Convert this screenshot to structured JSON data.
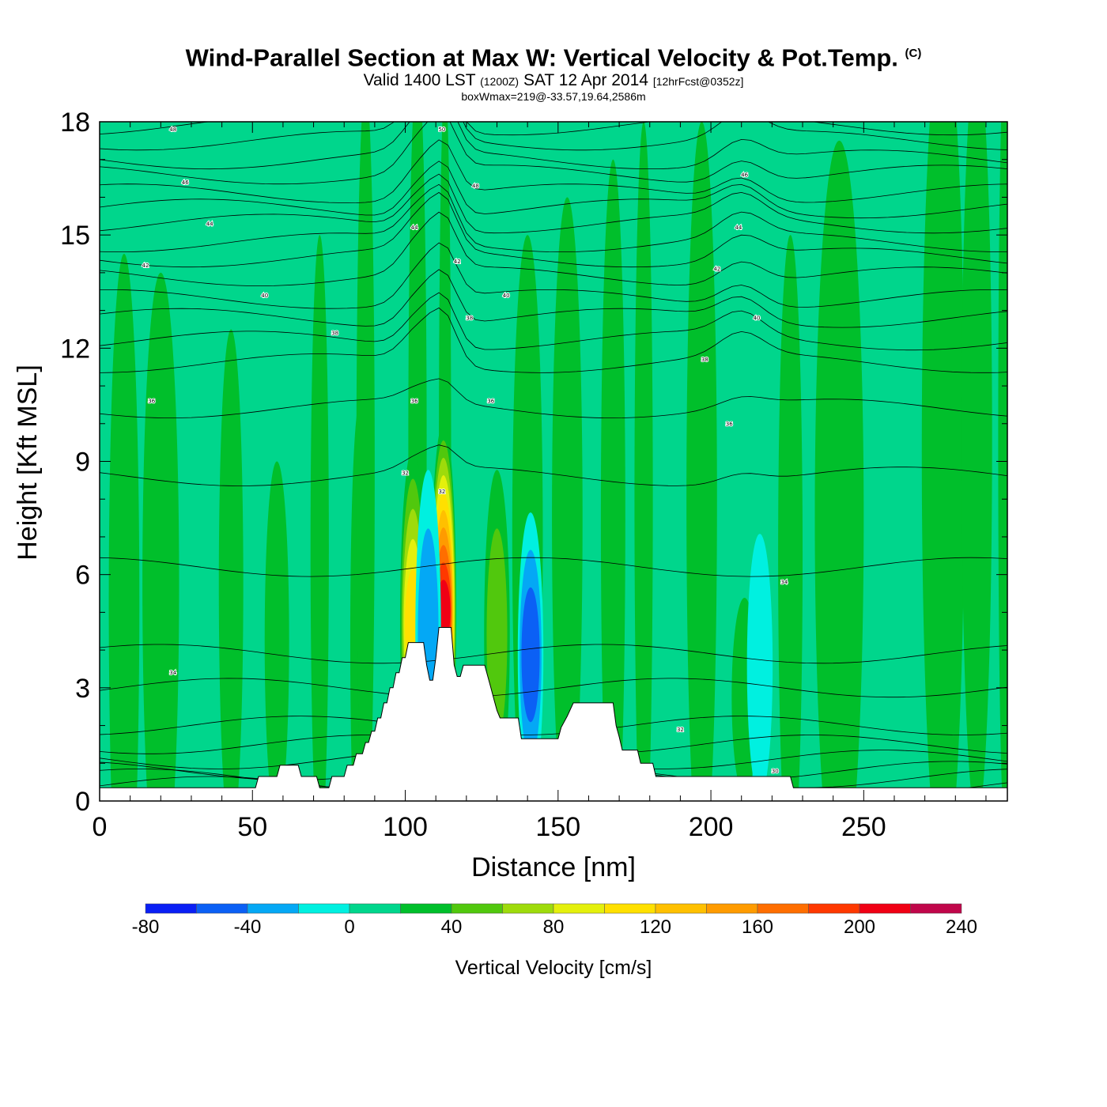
{
  "header": {
    "title": "Wind-Parallel Section at Max W: Vertical Velocity & Pot.Temp.",
    "copyright": "(C)",
    "valid_prefix": "Valid 1400 LST",
    "valid_utc": "(1200Z)",
    "valid_date": "SAT 12 Apr 2014",
    "forecast": "[12hrFcst@0352z]",
    "box_wmax": "boxWmax=219@-33.57,19.64,2586m"
  },
  "chart_data": {
    "type": "heatmap",
    "xlabel": "Distance [nm]",
    "ylabel": "Height [Kft MSL]",
    "xlim": [
      0,
      297
    ],
    "ylim": [
      0,
      18
    ],
    "x_ticks": [
      0,
      50,
      100,
      150,
      200,
      250
    ],
    "y_ticks": [
      0,
      3,
      6,
      9,
      12,
      15,
      18
    ],
    "colorbar": {
      "title": "Vertical Velocity [cm/s]",
      "levels": [
        -80,
        -60,
        -40,
        -20,
        0,
        20,
        40,
        60,
        80,
        100,
        120,
        140,
        160,
        180,
        200,
        220,
        240
      ],
      "tick_labels": [
        -80,
        -40,
        0,
        40,
        80,
        120,
        160,
        200,
        240
      ],
      "colors": [
        "#0a1ff5",
        "#0b60f5",
        "#04a8f5",
        "#00f0e0",
        "#00d68c",
        "#00bf2b",
        "#51c80d",
        "#9edb0b",
        "#e4f00c",
        "#ffe000",
        "#ffc000",
        "#ff9b00",
        "#ff6e00",
        "#ff3800",
        "#f00014",
        "#c0064a"
      ]
    },
    "background_value": 10,
    "updraft_cores": [
      {
        "x": 102.5,
        "height": 8.0,
        "peak": 125
      },
      {
        "x": 112.5,
        "height": 8.6,
        "peak": 219
      },
      {
        "x": 130,
        "height": 7.5,
        "peak": 60
      },
      {
        "x": 211,
        "height": 4.5,
        "peak": 45
      }
    ],
    "downdraft_cores": [
      {
        "x": 107.5,
        "height": 7.5,
        "peak": -35
      },
      {
        "x": 141,
        "height": 6.5,
        "peak": -55
      },
      {
        "x": 216,
        "height": 6.0,
        "peak": -25
      }
    ],
    "terrain": [
      [
        0,
        0.35
      ],
      [
        51,
        0.35
      ],
      [
        52,
        0.65
      ],
      [
        58,
        0.65
      ],
      [
        59,
        0.95
      ],
      [
        65,
        0.95
      ],
      [
        66,
        0.65
      ],
      [
        71,
        0.65
      ],
      [
        72,
        0.35
      ],
      [
        75,
        0.35
      ],
      [
        76,
        0.65
      ],
      [
        80,
        0.65
      ],
      [
        81,
        0.95
      ],
      [
        83,
        0.95
      ],
      [
        84,
        1.25
      ],
      [
        86,
        1.25
      ],
      [
        87,
        1.55
      ],
      [
        88,
        1.55
      ],
      [
        89,
        1.85
      ],
      [
        90,
        1.85
      ],
      [
        91,
        2.2
      ],
      [
        92,
        2.2
      ],
      [
        93,
        2.6
      ],
      [
        94,
        2.6
      ],
      [
        95,
        3.0
      ],
      [
        96,
        3.0
      ],
      [
        97,
        3.4
      ],
      [
        98,
        3.4
      ],
      [
        99,
        3.8
      ],
      [
        100,
        3.8
      ],
      [
        101,
        4.2
      ],
      [
        106,
        4.2
      ],
      [
        107,
        3.6
      ],
      [
        108,
        3.2
      ],
      [
        109,
        3.2
      ],
      [
        110,
        3.8
      ],
      [
        111,
        4.6
      ],
      [
        115,
        4.6
      ],
      [
        116,
        3.6
      ],
      [
        117,
        3.3
      ],
      [
        118,
        3.3
      ],
      [
        119,
        3.6
      ],
      [
        126,
        3.6
      ],
      [
        127,
        3.3
      ],
      [
        128,
        3.0
      ],
      [
        129,
        2.7
      ],
      [
        130,
        2.4
      ],
      [
        131,
        2.2
      ],
      [
        137,
        2.2
      ],
      [
        138,
        1.65
      ],
      [
        150,
        1.65
      ],
      [
        151,
        1.95
      ],
      [
        153,
        2.25
      ],
      [
        155,
        2.6
      ],
      [
        168,
        2.6
      ],
      [
        169,
        2.0
      ],
      [
        170,
        1.7
      ],
      [
        171,
        1.35
      ],
      [
        176,
        1.35
      ],
      [
        177,
        1.0
      ],
      [
        181,
        1.0
      ],
      [
        182,
        0.65
      ],
      [
        226,
        0.65
      ],
      [
        227,
        0.35
      ],
      [
        297,
        0.35
      ]
    ],
    "isentrope_labels": [
      {
        "text": "48",
        "x": 24,
        "y": 17.8
      },
      {
        "text": "46",
        "x": 28,
        "y": 16.4
      },
      {
        "text": "44",
        "x": 36,
        "y": 15.3
      },
      {
        "text": "42",
        "x": 15,
        "y": 14.2
      },
      {
        "text": "40",
        "x": 54,
        "y": 13.4
      },
      {
        "text": "38",
        "x": 77,
        "y": 12.4
      },
      {
        "text": "36",
        "x": 17,
        "y": 10.6
      },
      {
        "text": "34",
        "x": 24,
        "y": 3.4
      },
      {
        "text": "50",
        "x": 112,
        "y": 17.8
      },
      {
        "text": "48",
        "x": 123,
        "y": 16.3
      },
      {
        "text": "44",
        "x": 103,
        "y": 15.2
      },
      {
        "text": "42",
        "x": 117,
        "y": 14.3
      },
      {
        "text": "40",
        "x": 133,
        "y": 13.4
      },
      {
        "text": "38",
        "x": 121,
        "y": 12.8
      },
      {
        "text": "36",
        "x": 103,
        "y": 10.6
      },
      {
        "text": "36",
        "x": 128,
        "y": 10.6
      },
      {
        "text": "32",
        "x": 100,
        "y": 8.7
      },
      {
        "text": "32",
        "x": 112,
        "y": 8.2
      },
      {
        "text": "46",
        "x": 211,
        "y": 16.6
      },
      {
        "text": "44",
        "x": 209,
        "y": 15.2
      },
      {
        "text": "42",
        "x": 202,
        "y": 14.1
      },
      {
        "text": "40",
        "x": 215,
        "y": 12.8
      },
      {
        "text": "38",
        "x": 198,
        "y": 11.7
      },
      {
        "text": "36",
        "x": 206,
        "y": 10.0
      },
      {
        "text": "34",
        "x": 224,
        "y": 5.8
      },
      {
        "text": "32",
        "x": 190,
        "y": 1.9
      },
      {
        "text": "30",
        "x": 221,
        "y": 0.8
      }
    ]
  }
}
